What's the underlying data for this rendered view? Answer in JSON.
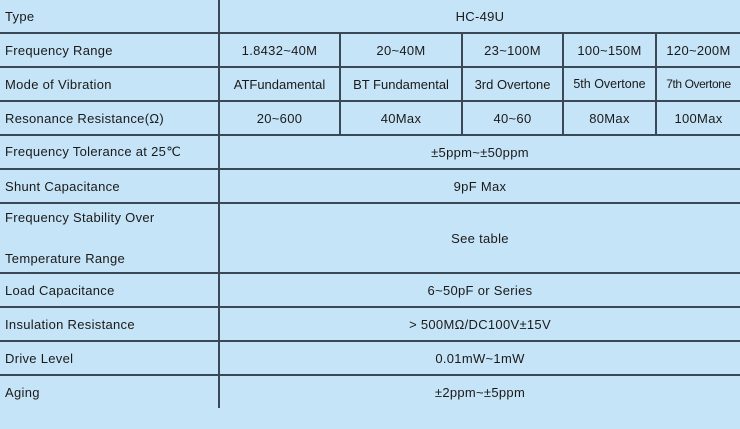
{
  "colors": {
    "background": "#c6e4f7",
    "grid": "#3b4956"
  },
  "rows": [
    {
      "label": "Type",
      "value": "HC-49U"
    },
    {
      "label": "Frequency Range",
      "cells": [
        "1.8432~40M",
        "20~40M",
        "23~100M",
        "100~150M",
        "120~200M"
      ]
    },
    {
      "label": "Mode of Vibration",
      "cells": [
        "ATFundamental",
        "BT Fundamental",
        "3rd Overtone",
        "5th Overtone",
        "7th Overtone"
      ]
    },
    {
      "label": "Resonance Resistance(Ω)",
      "cells": [
        "20~600",
        "40Max",
        "40~60",
        "80Max",
        "100Max"
      ]
    },
    {
      "label": "Frequency Tolerance at 25℃",
      "value": "±5ppm~±50ppm"
    },
    {
      "label": "Shunt Capacitance",
      "value": "9pF Max"
    },
    {
      "label_line1": "Frequency Stability Over",
      "label_line2": "Temperature Range",
      "value": "See table"
    },
    {
      "label": "Load Capacitance",
      "value": "6~50pF or Series"
    },
    {
      "label": "Insulation Resistance",
      "value": "> 500MΩ/DC100V±15V"
    },
    {
      "label": "Drive Level",
      "value": "0.01mW~1mW"
    },
    {
      "label": "Aging",
      "value": "±2ppm~±5ppm"
    }
  ]
}
